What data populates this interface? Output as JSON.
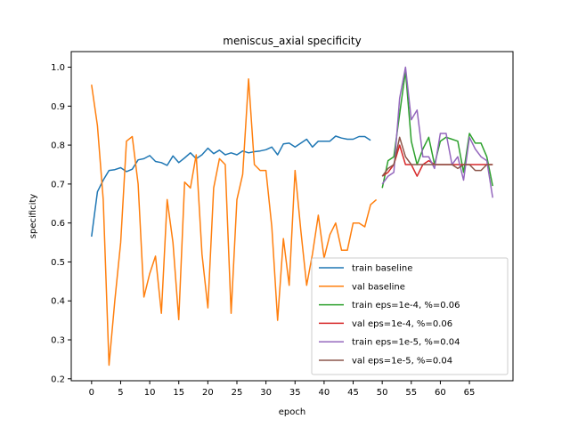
{
  "chart_data": {
    "type": "line",
    "title": "meniscus_axial specificity",
    "xlabel": "epoch",
    "ylabel": "specificity",
    "xlim": [
      -3.5,
      72.5
    ],
    "ylim": [
      0.195,
      1.04
    ],
    "xticks": [
      0,
      5,
      10,
      15,
      20,
      25,
      30,
      35,
      40,
      45,
      50,
      55,
      60,
      65
    ],
    "yticks": [
      0.2,
      0.3,
      0.4,
      0.5,
      0.6,
      0.7,
      0.8,
      0.9,
      1.0
    ],
    "ytick_labels": [
      "0.2",
      "0.3",
      "0.4",
      "0.5",
      "0.6",
      "0.7",
      "0.8",
      "0.9",
      "1.0"
    ],
    "grid": false,
    "legend_position": "lower-right",
    "series": [
      {
        "name": "train baseline",
        "color": "#1f77b4",
        "x": [
          0,
          1,
          2,
          3,
          4,
          5,
          6,
          7,
          8,
          9,
          10,
          11,
          12,
          13,
          14,
          15,
          16,
          17,
          18,
          19,
          20,
          21,
          22,
          23,
          24,
          25,
          26,
          27,
          28,
          29,
          30,
          31,
          32,
          33,
          34,
          35,
          36,
          37,
          38,
          39,
          40,
          41,
          42,
          43,
          44,
          45,
          46,
          47,
          48
        ],
        "y": [
          0.565,
          0.68,
          0.71,
          0.735,
          0.737,
          0.742,
          0.732,
          0.738,
          0.762,
          0.765,
          0.773,
          0.758,
          0.755,
          0.748,
          0.772,
          0.755,
          0.767,
          0.78,
          0.765,
          0.775,
          0.792,
          0.778,
          0.787,
          0.775,
          0.78,
          0.775,
          0.785,
          0.78,
          0.783,
          0.785,
          0.788,
          0.795,
          0.775,
          0.803,
          0.805,
          0.795,
          0.805,
          0.815,
          0.795,
          0.81,
          0.81,
          0.81,
          0.823,
          0.818,
          0.815,
          0.815,
          0.822,
          0.822,
          0.812
        ]
      },
      {
        "name": "val baseline",
        "color": "#ff7f0e",
        "x": [
          0,
          1,
          2,
          3,
          4,
          5,
          6,
          7,
          8,
          9,
          10,
          11,
          12,
          13,
          14,
          15,
          16,
          17,
          18,
          19,
          20,
          21,
          22,
          23,
          24,
          25,
          26,
          27,
          28,
          29,
          30,
          31,
          32,
          33,
          34,
          35,
          36,
          37,
          38,
          39,
          40,
          41,
          42,
          43,
          44,
          45,
          46,
          47,
          48,
          49
        ],
        "y": [
          0.955,
          0.85,
          0.66,
          0.235,
          0.4,
          0.55,
          0.81,
          0.822,
          0.7,
          0.41,
          0.47,
          0.515,
          0.368,
          0.66,
          0.55,
          0.352,
          0.705,
          0.69,
          0.775,
          0.52,
          0.382,
          0.69,
          0.765,
          0.75,
          0.368,
          0.66,
          0.725,
          0.97,
          0.75,
          0.735,
          0.735,
          0.59,
          0.35,
          0.56,
          0.44,
          0.735,
          0.58,
          0.44,
          0.52,
          0.62,
          0.51,
          0.57,
          0.6,
          0.53,
          0.53,
          0.6,
          0.6,
          0.59,
          0.647,
          0.66
        ]
      },
      {
        "name": "train eps=1e-4, %=0.06",
        "color": "#2ca02c",
        "x": [
          50,
          51,
          52,
          53,
          54,
          55,
          56,
          57,
          58,
          59,
          60,
          61,
          62,
          63,
          64,
          65,
          66,
          67,
          68,
          69
        ],
        "y": [
          0.69,
          0.76,
          0.77,
          0.88,
          0.99,
          0.81,
          0.75,
          0.79,
          0.82,
          0.75,
          0.81,
          0.82,
          0.815,
          0.81,
          0.73,
          0.83,
          0.805,
          0.805,
          0.77,
          0.695
        ]
      },
      {
        "name": "val eps=1e-4, %=0.06",
        "color": "#d62728",
        "x": [
          50,
          51,
          52,
          53,
          54,
          55,
          56,
          57,
          58,
          59,
          60,
          61,
          62,
          63,
          64,
          65,
          66,
          67,
          68,
          69
        ],
        "y": [
          0.72,
          0.73,
          0.75,
          0.8,
          0.75,
          0.75,
          0.72,
          0.75,
          0.76,
          0.75,
          0.75,
          0.75,
          0.75,
          0.75,
          0.75,
          0.75,
          0.75,
          0.75,
          0.75,
          0.75
        ]
      },
      {
        "name": "train eps=1e-5, %=0.04",
        "color": "#9467bd",
        "x": [
          50,
          51,
          52,
          53,
          54,
          55,
          56,
          57,
          58,
          59,
          60,
          61,
          62,
          63,
          64,
          65,
          66,
          67,
          68,
          69
        ],
        "y": [
          0.7,
          0.72,
          0.73,
          0.92,
          1.0,
          0.865,
          0.89,
          0.77,
          0.77,
          0.74,
          0.83,
          0.83,
          0.75,
          0.77,
          0.71,
          0.82,
          0.79,
          0.77,
          0.76,
          0.665
        ]
      },
      {
        "name": "val eps=1e-5, %=0.04",
        "color": "#8c564b",
        "x": [
          50,
          51,
          52,
          53,
          54,
          55,
          56,
          57,
          58,
          59,
          60,
          61,
          62,
          63,
          64,
          65,
          66,
          67,
          68,
          69
        ],
        "y": [
          0.72,
          0.74,
          0.75,
          0.82,
          0.77,
          0.75,
          0.75,
          0.75,
          0.75,
          0.75,
          0.75,
          0.75,
          0.75,
          0.74,
          0.75,
          0.75,
          0.735,
          0.735,
          0.75,
          0.75
        ]
      }
    ]
  }
}
